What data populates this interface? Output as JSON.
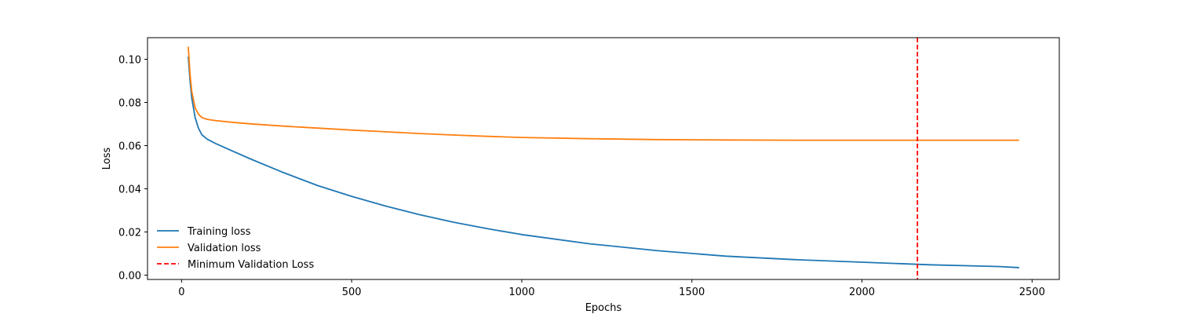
{
  "chart_data": {
    "type": "line",
    "title": "",
    "xlabel": "Epochs",
    "ylabel": "Loss",
    "xlim": [
      -100,
      2580
    ],
    "ylim": [
      -0.002,
      0.11
    ],
    "xticks": [
      0,
      500,
      1000,
      1500,
      2000,
      2500
    ],
    "xtick_labels": [
      "0",
      "500",
      "1000",
      "1500",
      "2000",
      "2500"
    ],
    "yticks": [
      0.0,
      0.02,
      0.04,
      0.06,
      0.08,
      0.1
    ],
    "ytick_labels": [
      "0.00",
      "0.02",
      "0.04",
      "0.06",
      "0.08",
      "0.10"
    ],
    "grid": false,
    "legend_position": "lower-left",
    "series": [
      {
        "name": "Training loss",
        "color": "#1f77b4",
        "style": "solid",
        "x": [
          20,
          25,
          30,
          40,
          50,
          60,
          75,
          100,
          150,
          200,
          300,
          400,
          500,
          600,
          700,
          800,
          900,
          1000,
          1200,
          1400,
          1600,
          1800,
          2000,
          2200,
          2400,
          2460
        ],
        "y": [
          0.101,
          0.09,
          0.082,
          0.073,
          0.068,
          0.065,
          0.063,
          0.061,
          0.0575,
          0.054,
          0.0475,
          0.0415,
          0.0365,
          0.032,
          0.028,
          0.0245,
          0.0215,
          0.0188,
          0.0145,
          0.0113,
          0.0088,
          0.0072,
          0.006,
          0.0048,
          0.004,
          0.0035
        ]
      },
      {
        "name": "Validation loss",
        "color": "#ff7f0e",
        "style": "solid",
        "x": [
          20,
          25,
          30,
          40,
          50,
          60,
          75,
          100,
          150,
          200,
          300,
          400,
          500,
          600,
          700,
          800,
          900,
          1000,
          1200,
          1400,
          1600,
          1800,
          2000,
          2200,
          2400,
          2460
        ],
        "y": [
          0.1055,
          0.093,
          0.085,
          0.0775,
          0.0745,
          0.073,
          0.0722,
          0.0716,
          0.0708,
          0.0701,
          0.069,
          0.0681,
          0.0672,
          0.0664,
          0.0656,
          0.0649,
          0.0643,
          0.0638,
          0.0632,
          0.0628,
          0.0626,
          0.0625,
          0.0625,
          0.0625,
          0.0625,
          0.0625
        ]
      }
    ],
    "vlines": [
      {
        "name": "Minimum Validation Loss",
        "x": 2163,
        "color": "#ff0000",
        "style": "dashed"
      }
    ]
  }
}
